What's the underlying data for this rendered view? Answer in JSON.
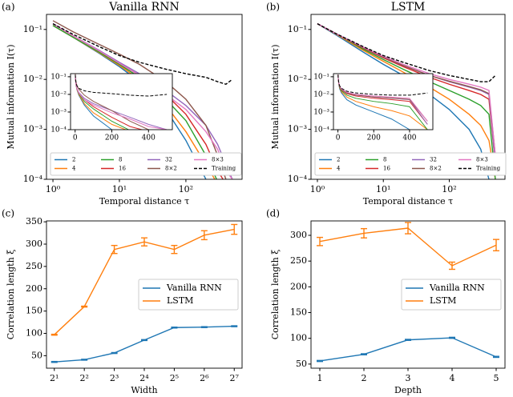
{
  "chart_data": [
    {
      "type": "line",
      "panel_label": "(a)",
      "title": "Vanilla RNN",
      "x_label": "Temporal distance τ",
      "y_label": "Mutual information I(τ)",
      "x": [
        1,
        2,
        5,
        10,
        20,
        50,
        100,
        200,
        300,
        400,
        500
      ],
      "xlog": true,
      "ylog": true,
      "xlim": [
        0.8,
        700
      ],
      "ylim": [
        0.0001,
        0.2
      ],
      "xticks": [
        {
          "value": 1,
          "label": "10⁰"
        },
        {
          "value": 10,
          "label": "10¹"
        },
        {
          "value": 100,
          "label": "10²"
        }
      ],
      "yticks": [
        {
          "value": 0.0001,
          "label": "10⁻⁴"
        },
        {
          "value": 0.001,
          "label": "10⁻³"
        },
        {
          "value": 0.01,
          "label": "10⁻²"
        },
        {
          "value": 0.1,
          "label": "10⁻¹"
        }
      ],
      "legend": "lower left",
      "legend_columns": 4,
      "series": [
        {
          "name": "2",
          "color": "#1f77b4",
          "values": [
            0.12,
            0.07,
            0.033,
            0.018,
            0.009,
            0.0025,
            0.0006,
            0.0001,
            null,
            null,
            null
          ]
        },
        {
          "name": "4",
          "color": "#ff7f0e",
          "values": [
            0.12,
            0.07,
            0.034,
            0.019,
            0.01,
            0.003,
            0.0009,
            0.0002,
            8e-05,
            null,
            null
          ]
        },
        {
          "name": "8",
          "color": "#2ca02c",
          "values": [
            0.12,
            0.07,
            0.035,
            0.02,
            0.011,
            0.004,
            0.0015,
            0.0003,
            9e-05,
            null,
            null
          ]
        },
        {
          "name": "16",
          "color": "#d62728",
          "values": [
            0.13,
            0.075,
            0.037,
            0.021,
            0.012,
            0.005,
            0.002,
            0.0005,
            0.00015,
            8e-05,
            null
          ]
        },
        {
          "name": "32",
          "color": "#9467bd",
          "values": [
            0.13,
            0.075,
            0.038,
            0.022,
            0.013,
            0.006,
            0.003,
            0.0012,
            0.0005,
            0.0002,
            0.0001
          ]
        },
        {
          "name": "8×2",
          "color": "#8c564b",
          "values": [
            0.15,
            0.09,
            0.05,
            0.032,
            0.02,
            0.009,
            0.004,
            0.0012,
            0.0003,
            0.0001,
            null
          ]
        },
        {
          "name": "8×3",
          "color": "#e377c2",
          "values": [
            0.13,
            0.075,
            0.037,
            0.021,
            0.012,
            0.005,
            0.0025,
            0.0009,
            0.0004,
            0.00015,
            0.0001
          ]
        },
        {
          "name": "Training",
          "color": "#000000",
          "dash": true,
          "values": [
            0.13,
            0.08,
            0.045,
            0.03,
            0.022,
            0.016,
            0.013,
            0.011,
            0.009,
            0.008,
            0.01
          ]
        }
      ],
      "inset": {
        "xlim": [
          -25,
          530
        ],
        "ylim": [
          0.0001,
          0.15
        ],
        "ylog": true,
        "xticks": [
          0,
          200,
          400
        ],
        "yticks": [
          {
            "value": 0.0001,
            "label": "10⁻⁴"
          },
          {
            "value": 0.001,
            "label": "10⁻³"
          },
          {
            "value": 0.01,
            "label": "10⁻²"
          },
          {
            "value": 0.1,
            "label": "10⁻¹"
          }
        ]
      }
    },
    {
      "type": "line",
      "panel_label": "(b)",
      "title": "LSTM",
      "x_label": "Temporal distance τ",
      "y_label": "Mutual information I(τ)",
      "x": [
        1,
        2,
        5,
        10,
        20,
        50,
        100,
        200,
        300,
        400,
        500
      ],
      "xlog": true,
      "ylog": true,
      "xlim": [
        0.8,
        700
      ],
      "ylim": [
        0.0001,
        0.2
      ],
      "xticks": [
        {
          "value": 1,
          "label": "10⁰"
        },
        {
          "value": 10,
          "label": "10¹"
        },
        {
          "value": 100,
          "label": "10²"
        }
      ],
      "yticks": [
        {
          "value": 0.0001,
          "label": "10⁻⁴"
        },
        {
          "value": 0.001,
          "label": "10⁻³"
        },
        {
          "value": 0.01,
          "label": "10⁻²"
        },
        {
          "value": 0.1,
          "label": "10⁻¹"
        }
      ],
      "legend": "lower left",
      "legend_columns": 4,
      "series": [
        {
          "name": "2",
          "color": "#1f77b4",
          "values": [
            0.13,
            0.075,
            0.035,
            0.02,
            0.012,
            0.005,
            0.0025,
            0.001,
            0.0004,
            0.0001,
            null
          ]
        },
        {
          "name": "4",
          "color": "#ff7f0e",
          "values": [
            0.13,
            0.078,
            0.038,
            0.023,
            0.014,
            0.007,
            0.004,
            0.002,
            0.0012,
            0.0006,
            0.0001
          ]
        },
        {
          "name": "8",
          "color": "#2ca02c",
          "values": [
            0.13,
            0.08,
            0.04,
            0.025,
            0.016,
            0.009,
            0.006,
            0.004,
            0.003,
            0.002,
            0.0001
          ]
        },
        {
          "name": "16",
          "color": "#d62728",
          "values": [
            0.13,
            0.08,
            0.042,
            0.027,
            0.018,
            0.011,
            0.008,
            0.006,
            0.005,
            0.004,
            0.0002
          ]
        },
        {
          "name": "32",
          "color": "#9467bd",
          "values": [
            0.13,
            0.08,
            0.043,
            0.028,
            0.019,
            0.012,
            0.009,
            0.007,
            0.006,
            0.005,
            0.0002
          ]
        },
        {
          "name": "8×2",
          "color": "#8c564b",
          "values": [
            0.13,
            0.08,
            0.043,
            0.028,
            0.019,
            0.012,
            0.0092,
            0.0072,
            0.0062,
            0.0052,
            0.0003
          ]
        },
        {
          "name": "8×3",
          "color": "#e377c2",
          "values": [
            0.13,
            0.08,
            0.044,
            0.029,
            0.02,
            0.013,
            0.01,
            0.008,
            0.007,
            0.006,
            0.0003
          ]
        },
        {
          "name": "Training",
          "color": "#000000",
          "dash": true,
          "values": [
            0.13,
            0.08,
            0.045,
            0.03,
            0.022,
            0.015,
            0.012,
            0.01,
            0.009,
            0.009,
            0.012
          ]
        }
      ],
      "inset": {
        "xlim": [
          -25,
          530
        ],
        "ylim": [
          0.0001,
          0.15
        ],
        "ylog": true,
        "xticks": [
          0,
          200,
          400
        ],
        "yticks": [
          {
            "value": 0.0001,
            "label": "10⁻⁴"
          },
          {
            "value": 0.001,
            "label": "10⁻³"
          },
          {
            "value": 0.01,
            "label": "10⁻²"
          },
          {
            "value": 0.1,
            "label": "10⁻¹"
          }
        ]
      }
    },
    {
      "type": "errorbar",
      "panel_label": "(c)",
      "x_label": "Width",
      "y_label": "Correlation length ξ",
      "categories": [
        "2¹",
        "2²",
        "2³",
        "2⁴",
        "2⁵",
        "2⁶",
        "2⁷"
      ],
      "ylim": [
        22,
        352
      ],
      "yticks": [
        50,
        100,
        150,
        200,
        250,
        300,
        350
      ],
      "legend": "center right",
      "legend_columns": 1,
      "series": [
        {
          "name": "Vanilla RNN",
          "color": "#1f77b4",
          "values": [
            36,
            41,
            56,
            85,
            113,
            114,
            116
          ],
          "errors": [
            1,
            1,
            1,
            1,
            1,
            1,
            1
          ]
        },
        {
          "name": "LSTM",
          "color": "#ff7f0e",
          "values": [
            97,
            160,
            288,
            305,
            288,
            320,
            333
          ],
          "errors": [
            1,
            1,
            9,
            9,
            9,
            10,
            11
          ]
        }
      ]
    },
    {
      "type": "errorbar",
      "panel_label": "(d)",
      "x_label": "Depth",
      "y_label": "Correlation length ξ",
      "x": [
        1,
        2,
        3,
        4,
        5
      ],
      "xlim": [
        0.8,
        5.2
      ],
      "xticks": [
        1,
        2,
        3,
        4,
        5
      ],
      "ylim": [
        42,
        328
      ],
      "yticks": [
        50,
        100,
        150,
        200,
        250,
        300
      ],
      "legend": "center right",
      "legend_columns": 1,
      "series": [
        {
          "name": "Vanilla RNN",
          "color": "#1f77b4",
          "values": [
            56,
            69,
            97,
            101,
            64
          ],
          "errors": [
            1,
            1,
            1,
            1,
            1
          ]
        },
        {
          "name": "LSTM",
          "color": "#ff7f0e",
          "values": [
            288,
            304,
            314,
            241,
            281
          ],
          "errors": [
            8,
            9,
            11,
            7,
            11
          ]
        }
      ]
    }
  ]
}
